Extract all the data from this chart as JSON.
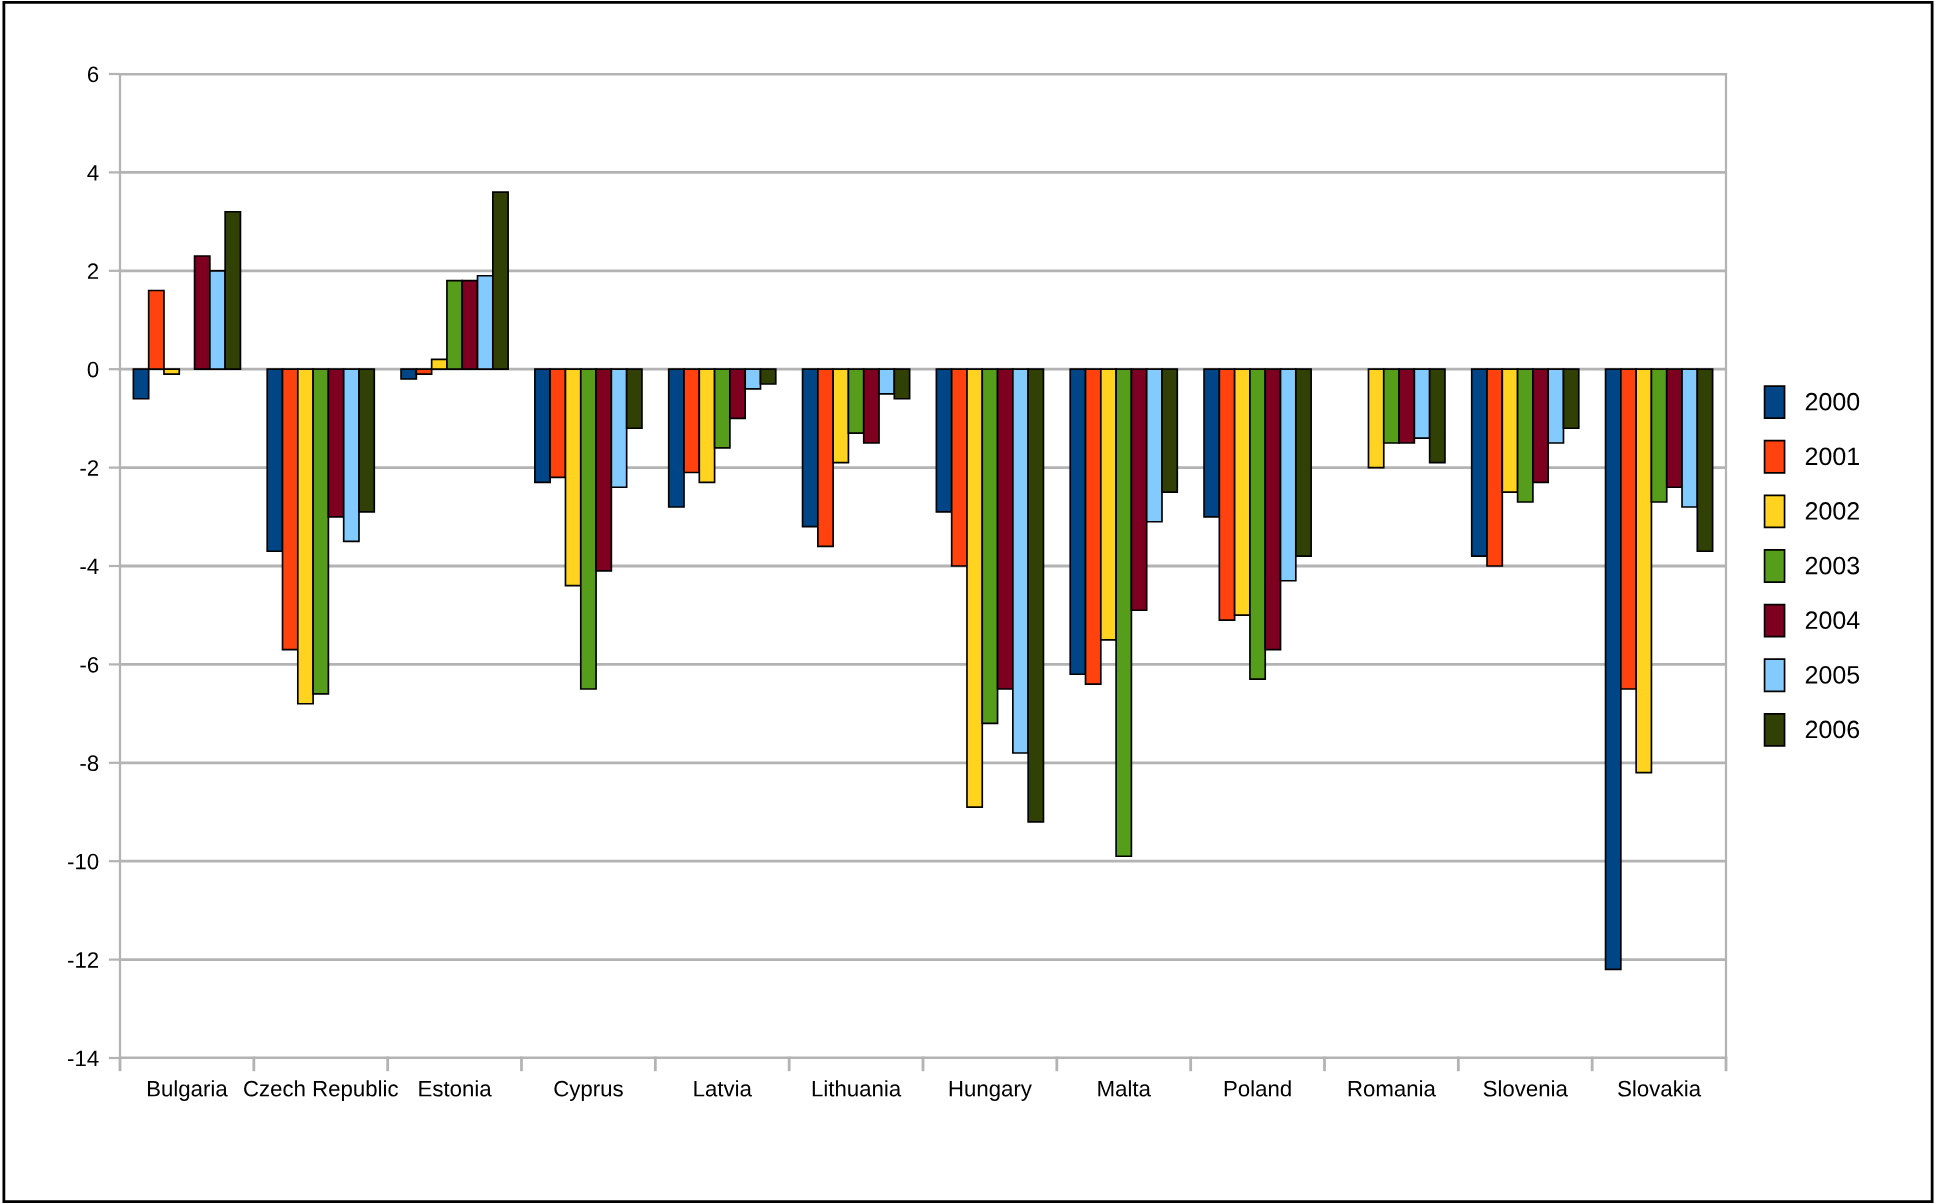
{
  "chart_data": {
    "type": "bar",
    "categories": [
      "Bulgaria",
      "Czech Republic",
      "Estonia",
      "Cyprus",
      "Latvia",
      "Lithuania",
      "Hungary",
      "Malta",
      "Poland",
      "Romania",
      "Slovenia",
      "Slovakia"
    ],
    "series": [
      {
        "name": "2000",
        "color": "#004586",
        "values": [
          -0.6,
          -3.7,
          -0.2,
          -2.3,
          -2.8,
          -3.2,
          -2.9,
          -6.2,
          -3.0,
          null,
          -3.8,
          -12.2
        ]
      },
      {
        "name": "2001",
        "color": "#ff420e",
        "values": [
          1.6,
          -5.7,
          -0.1,
          -2.2,
          -2.1,
          -3.6,
          -4.0,
          -6.4,
          -5.1,
          null,
          -4.0,
          -6.5
        ]
      },
      {
        "name": "2002",
        "color": "#ffd320",
        "values": [
          -0.1,
          -6.8,
          0.2,
          -4.4,
          -2.3,
          -1.9,
          -8.9,
          -5.5,
          -5.0,
          -2.0,
          -2.5,
          -8.2
        ]
      },
      {
        "name": "2003",
        "color": "#579d1c",
        "values": [
          null,
          -6.6,
          1.8,
          -6.5,
          -1.6,
          -1.3,
          -7.2,
          -9.9,
          -6.3,
          -1.5,
          -2.7,
          -2.7
        ]
      },
      {
        "name": "2004",
        "color": "#7e0021",
        "values": [
          2.3,
          -3.0,
          1.8,
          -4.1,
          -1.0,
          -1.5,
          -6.5,
          -4.9,
          -5.7,
          -1.5,
          -2.3,
          -2.4
        ]
      },
      {
        "name": "2005",
        "color": "#83caff",
        "values": [
          2.0,
          -3.5,
          1.9,
          -2.4,
          -0.4,
          -0.5,
          -7.8,
          -3.1,
          -4.3,
          -1.4,
          -1.5,
          -2.8
        ]
      },
      {
        "name": "2006",
        "color": "#314004",
        "values": [
          3.2,
          -2.9,
          3.6,
          -1.2,
          -0.3,
          -0.6,
          -9.2,
          -2.5,
          -3.8,
          -1.9,
          -1.2,
          -3.7
        ]
      }
    ],
    "ylim": [
      -14,
      6
    ],
    "yticks": [
      -14,
      -12,
      -10,
      -8,
      -6,
      -4,
      -2,
      0,
      2,
      4,
      6
    ],
    "grid": "y",
    "legend": "right"
  }
}
